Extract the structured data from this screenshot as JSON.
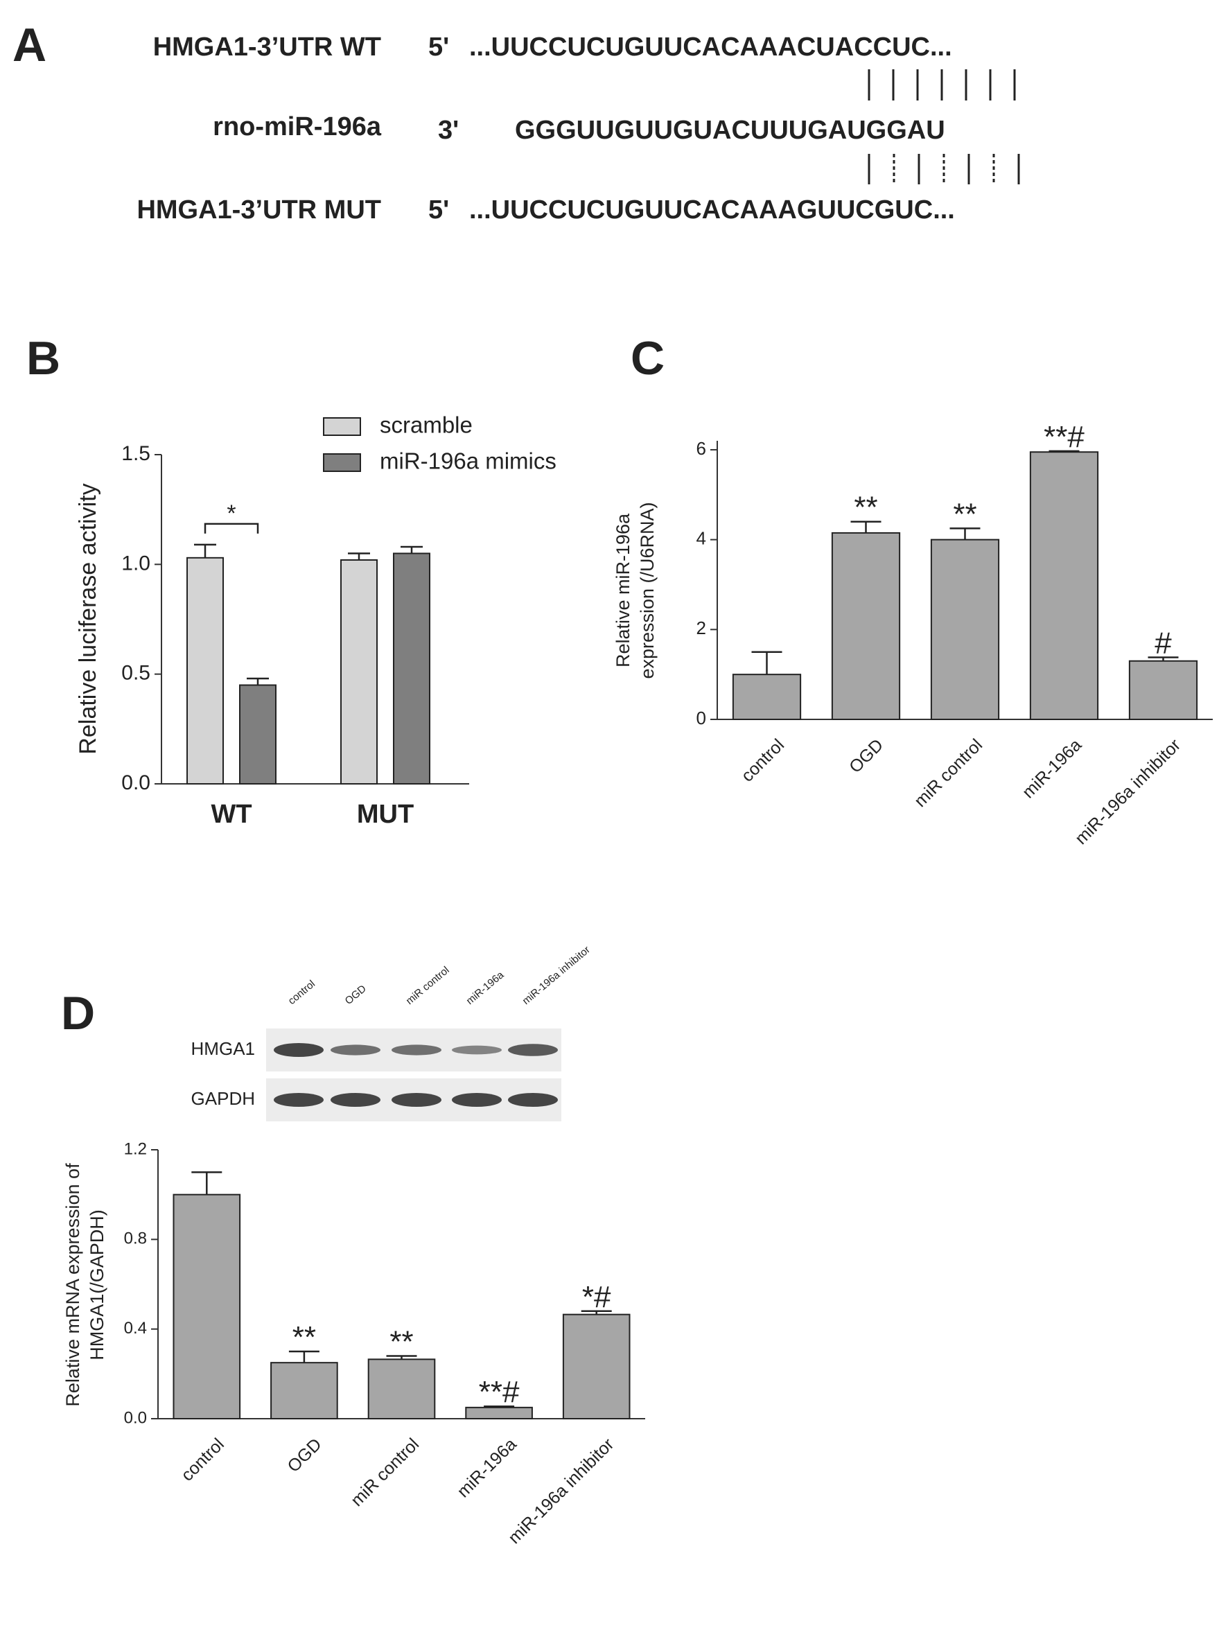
{
  "panel_a": {
    "label": "A",
    "rows": [
      {
        "name": "HMGA1-3’UTR WT",
        "end": "5'",
        "sequence": "...UUCCUCUGUUCACAAACUACCUC..."
      },
      {
        "name": "rno-miR-196a",
        "end": "3'",
        "sequence": "GGGUUGUUGUACUUUGAUGGAU"
      },
      {
        "name": "HMGA1-3’UTR MUT",
        "end": "5'",
        "sequence": "...UUCCUCUGUUCACAAAGUUCGUC..."
      }
    ]
  },
  "chart_data": [
    {
      "type": "grouped_bar",
      "panel_label": "B",
      "y_label": [
        "Relative luciferase activity"
      ],
      "categories": [
        "WT",
        "MUT"
      ],
      "series": [
        {
          "name": "scramble",
          "color": "#d4d4d4",
          "values": [
            1.03,
            1.02
          ],
          "errors": [
            0.06,
            0.03
          ]
        },
        {
          "name": "miR-196a mimics",
          "color": "#7f7f7f",
          "values": [
            0.45,
            1.05
          ],
          "errors": [
            0.03,
            0.03
          ]
        }
      ],
      "bracket_label": "*",
      "ylim": [
        0,
        1.5
      ],
      "yticks": [
        {
          "value": 0,
          "label": "0.0"
        },
        {
          "value": 0.5,
          "label": "0.5"
        },
        {
          "value": 1,
          "label": "1.0"
        },
        {
          "value": 1.5,
          "label": "1.5"
        }
      ]
    },
    {
      "type": "bar",
      "panel_label": "C",
      "y_label": [
        "Relative miR-196a",
        "expression (/U6RNA)"
      ],
      "categories": [
        "control",
        "OGD",
        "miR control",
        "miR-196a",
        "miR-196a inhibitor"
      ],
      "values": [
        1.0,
        4.15,
        4.0,
        5.95,
        1.3
      ],
      "errors": [
        0.5,
        0.25,
        0.25,
        0.02,
        0.08
      ],
      "annotations": [
        null,
        "**",
        "**",
        "**#",
        "#"
      ],
      "color": "#a6a6a6",
      "ylim": [
        0,
        6.2
      ],
      "yticks": [
        0,
        2,
        4,
        6
      ]
    },
    {
      "type": "bar",
      "panel_label": "D",
      "y_label": [
        "Relative mRNA expression of",
        "HMGA1(/GAPDH)"
      ],
      "blot": {
        "lanes": [
          "control",
          "OGD",
          "miR control",
          "miR-196a",
          "miR-196a inhibitor"
        ],
        "rows": [
          "HMGA1",
          "GAPDH"
        ]
      },
      "categories": [
        "control",
        "OGD",
        "miR control",
        "miR-196a",
        "miR-196a inhibitor"
      ],
      "values": [
        1.0,
        0.25,
        0.265,
        0.05,
        0.465
      ],
      "errors": [
        0.1,
        0.05,
        0.015,
        0.005,
        0.015
      ],
      "annotations": [
        null,
        "**",
        "**",
        "**#",
        "*#"
      ],
      "color": "#a6a6a6",
      "ylim": [
        0,
        1.2
      ],
      "yticks": [
        {
          "value": 0,
          "label": "0.0"
        },
        {
          "value": 0.4,
          "label": "0.4"
        },
        {
          "value": 0.8,
          "label": "0.8"
        },
        {
          "value": 1.2,
          "label": "1.2"
        }
      ]
    }
  ]
}
